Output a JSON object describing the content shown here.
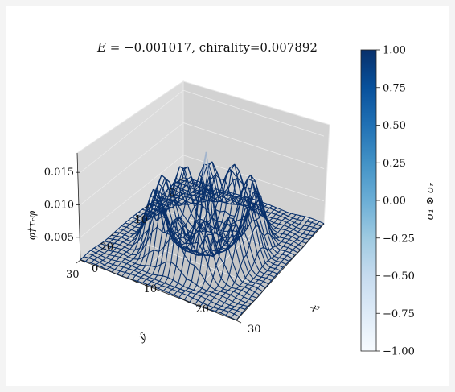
{
  "chart_data": {
    "type": "surface",
    "title": "E = −0.001017, chirality=0.007892",
    "title_parts": {
      "var": "E",
      "rest": "= −0.001017, chirality=0.007892"
    },
    "xlabel": "x̂",
    "ylabel": "ŷ",
    "zlabel": "φ†τᵣφ",
    "x_ticks": [
      "0",
      "10",
      "20",
      "30"
    ],
    "y_ticks": [
      "0",
      "10",
      "20",
      "30"
    ],
    "z_ticks": [
      "0.005",
      "0.010",
      "0.015"
    ],
    "xlim": [
      0,
      30
    ],
    "ylim": [
      0,
      30
    ],
    "zlim": [
      0.0015,
      0.018
    ],
    "grid": true,
    "colorbar": {
      "label": "σ₁ ⊗ σᵣ",
      "ticks": [
        "1.00",
        "0.75",
        "0.50",
        "0.25",
        "0.00",
        "−0.25",
        "−0.50",
        "−0.75",
        "−1.00"
      ],
      "range": [
        -1.0,
        1.0
      ],
      "cmap": "Blues"
    },
    "colors": {
      "dark": "#08306b",
      "light": "#f7fbff",
      "pane": "#d6d6d6",
      "floor": "#c4c4c4"
    }
  }
}
